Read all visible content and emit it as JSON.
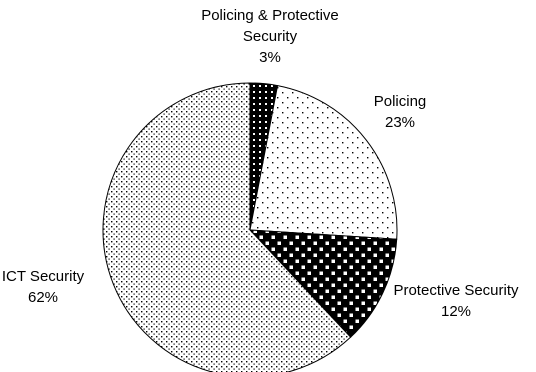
{
  "chart_data": {
    "type": "pie",
    "title": "",
    "slices": [
      {
        "name": "Policing & Protective Security",
        "label_lines": [
          "Policing & Protective",
          "Security"
        ],
        "value": 3,
        "value_label": "3%",
        "pattern": "dense-black-dots"
      },
      {
        "name": "Policing",
        "label_lines": [
          "Policing"
        ],
        "value": 23,
        "value_label": "23%",
        "pattern": "sparse-dots"
      },
      {
        "name": "Protective Security",
        "label_lines": [
          "Protective Security"
        ],
        "value": 12,
        "value_label": "12%",
        "pattern": "black-white-squares"
      },
      {
        "name": "ICT Security",
        "label_lines": [
          "ICT Security"
        ],
        "value": 62,
        "value_label": "62%",
        "pattern": "dense-dots"
      }
    ],
    "start_angle_deg": 0,
    "direction": "clockwise",
    "legend": "none",
    "colors": {
      "stroke": "#000000",
      "background": "#ffffff"
    }
  }
}
